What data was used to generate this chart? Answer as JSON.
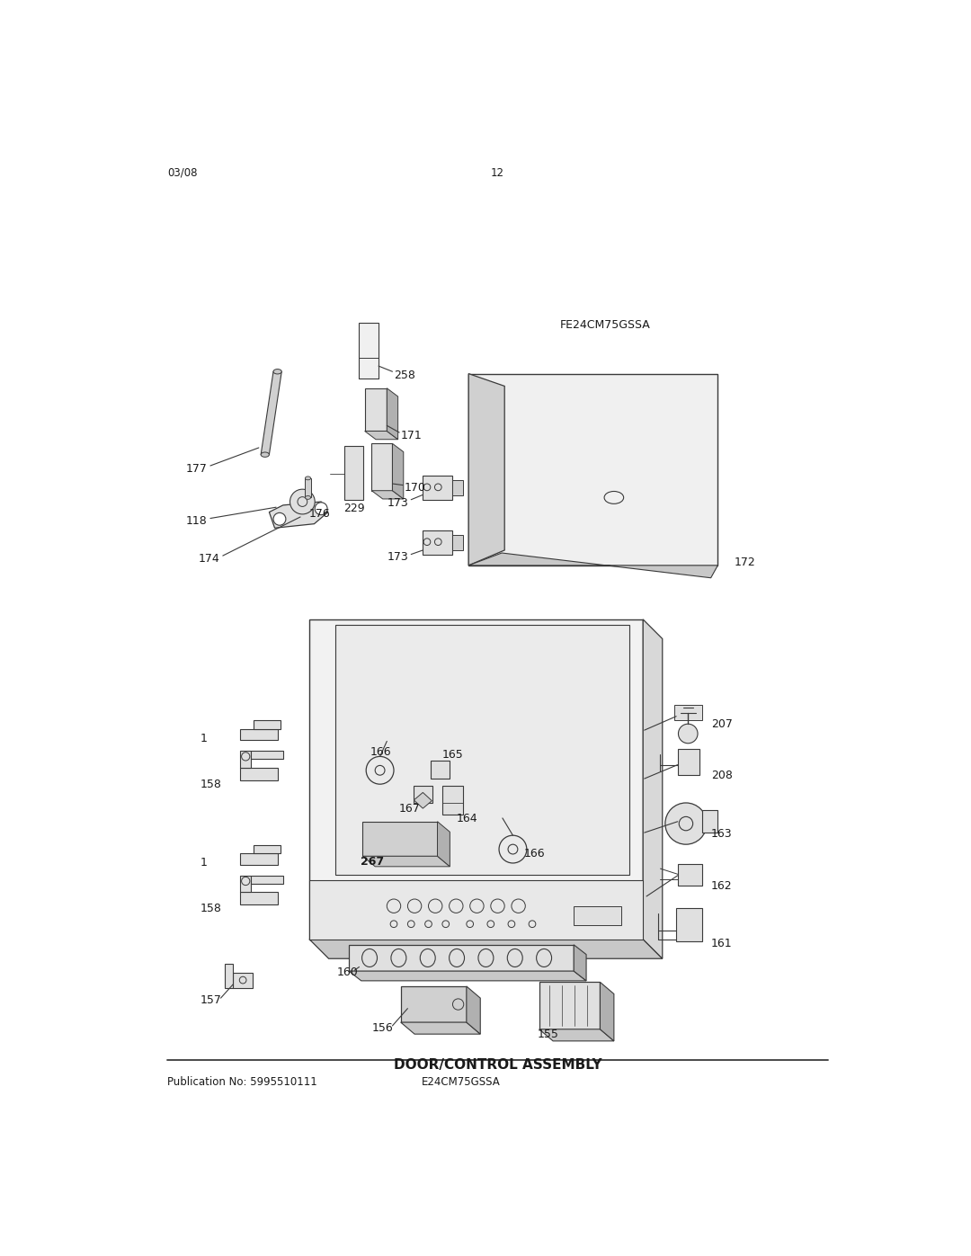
{
  "page_title": "DOOR/CONTROL ASSEMBLY",
  "pub_no": "Publication No: 5995510111",
  "model": "E24CM75GSSA",
  "model2": "FE24CM75GSSA",
  "date": "03/08",
  "page": "12",
  "bg_color": "#ffffff",
  "lc": "#3a3a3a",
  "tc": "#1a1a1a",
  "gray1": "#c8c8c8",
  "gray2": "#e0e0e0",
  "gray3": "#d0d0d0",
  "gray4": "#b0b0b0"
}
